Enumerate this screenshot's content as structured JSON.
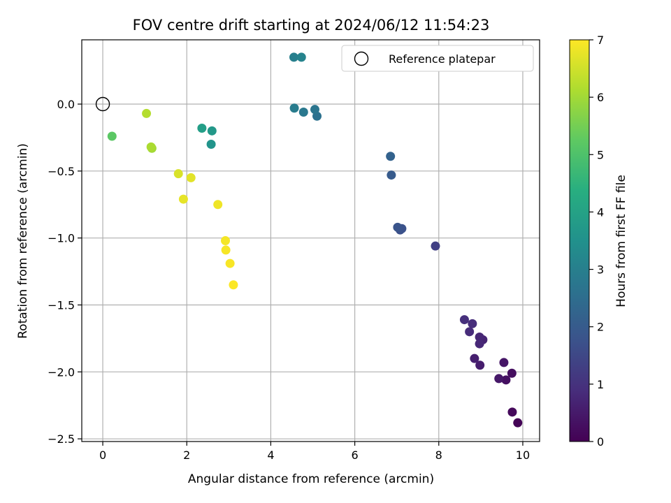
{
  "chart_data": {
    "type": "scatter",
    "title": "FOV centre drift starting at 2024/06/12 11:54:23",
    "xlabel": "Angular distance from reference (arcmin)",
    "ylabel": "Rotation from reference (arcmin)",
    "xlim": [
      -0.5,
      10.4
    ],
    "ylim": [
      -2.52,
      0.48
    ],
    "xticks": [
      0,
      2,
      4,
      6,
      8,
      10
    ],
    "xtick_labels": [
      "0",
      "2",
      "4",
      "6",
      "8",
      "10"
    ],
    "yticks": [
      0.0,
      -0.5,
      -1.0,
      -1.5,
      -2.0,
      -2.5
    ],
    "ytick_labels": [
      "0.0",
      "−0.5",
      "−1.0",
      "−1.5",
      "−2.0",
      "−2.5"
    ],
    "grid": true,
    "legend": {
      "placement": "top-right",
      "entries": [
        "Reference platepar"
      ]
    },
    "reference_point": {
      "x": 0.0,
      "y": 0.0,
      "marker": "open-circle"
    },
    "colorbar": {
      "label": "Hours from first FF file",
      "min": 0,
      "max": 7,
      "ticks": [
        0,
        1,
        2,
        3,
        4,
        5,
        6,
        7
      ],
      "tick_labels": [
        "0",
        "1",
        "2",
        "3",
        "4",
        "5",
        "6",
        "7"
      ],
      "colormap": "viridis"
    },
    "points": [
      {
        "x": 9.88,
        "y": -2.38,
        "c": 0.05
      },
      {
        "x": 9.75,
        "y": -2.3,
        "c": 0.15
      },
      {
        "x": 9.74,
        "y": -2.01,
        "c": 0.25
      },
      {
        "x": 9.6,
        "y": -2.06,
        "c": 0.3
      },
      {
        "x": 9.55,
        "y": -1.93,
        "c": 0.4
      },
      {
        "x": 9.43,
        "y": -2.05,
        "c": 0.45
      },
      {
        "x": 8.98,
        "y": -1.95,
        "c": 0.55
      },
      {
        "x": 8.85,
        "y": -1.9,
        "c": 0.6
      },
      {
        "x": 9.05,
        "y": -1.76,
        "c": 0.7
      },
      {
        "x": 8.97,
        "y": -1.74,
        "c": 0.75
      },
      {
        "x": 8.97,
        "y": -1.79,
        "c": 0.78
      },
      {
        "x": 8.73,
        "y": -1.7,
        "c": 0.85
      },
      {
        "x": 8.8,
        "y": -1.64,
        "c": 0.9
      },
      {
        "x": 8.61,
        "y": -1.61,
        "c": 0.95
      },
      {
        "x": 7.92,
        "y": -1.06,
        "c": 1.3
      },
      {
        "x": 7.08,
        "y": -0.94,
        "c": 1.7
      },
      {
        "x": 7.12,
        "y": -0.93,
        "c": 1.75
      },
      {
        "x": 7.02,
        "y": -0.92,
        "c": 1.8
      },
      {
        "x": 6.87,
        "y": -0.53,
        "c": 2.0
      },
      {
        "x": 6.85,
        "y": -0.39,
        "c": 2.2
      },
      {
        "x": 5.1,
        "y": -0.09,
        "c": 2.6
      },
      {
        "x": 5.05,
        "y": -0.04,
        "c": 2.7
      },
      {
        "x": 4.78,
        "y": -0.06,
        "c": 2.8
      },
      {
        "x": 4.56,
        "y": -0.03,
        "c": 2.9
      },
      {
        "x": 4.55,
        "y": 0.35,
        "c": 3.0
      },
      {
        "x": 4.73,
        "y": 0.35,
        "c": 3.1
      },
      {
        "x": 2.58,
        "y": -0.3,
        "c": 3.6
      },
      {
        "x": 2.6,
        "y": -0.2,
        "c": 3.7
      },
      {
        "x": 2.36,
        "y": -0.18,
        "c": 3.9
      },
      {
        "x": 0.22,
        "y": -0.24,
        "c": 5.2
      },
      {
        "x": 1.17,
        "y": -0.33,
        "c": 6.0
      },
      {
        "x": 1.15,
        "y": -0.32,
        "c": 6.1
      },
      {
        "x": 1.04,
        "y": -0.07,
        "c": 6.2
      },
      {
        "x": 1.8,
        "y": -0.52,
        "c": 6.6
      },
      {
        "x": 2.1,
        "y": -0.55,
        "c": 6.7
      },
      {
        "x": 1.92,
        "y": -0.71,
        "c": 6.75
      },
      {
        "x": 2.74,
        "y": -0.75,
        "c": 6.85
      },
      {
        "x": 2.92,
        "y": -1.02,
        "c": 6.9
      },
      {
        "x": 2.93,
        "y": -1.09,
        "c": 6.92
      },
      {
        "x": 3.03,
        "y": -1.19,
        "c": 6.95
      },
      {
        "x": 3.11,
        "y": -1.35,
        "c": 6.98
      }
    ]
  }
}
